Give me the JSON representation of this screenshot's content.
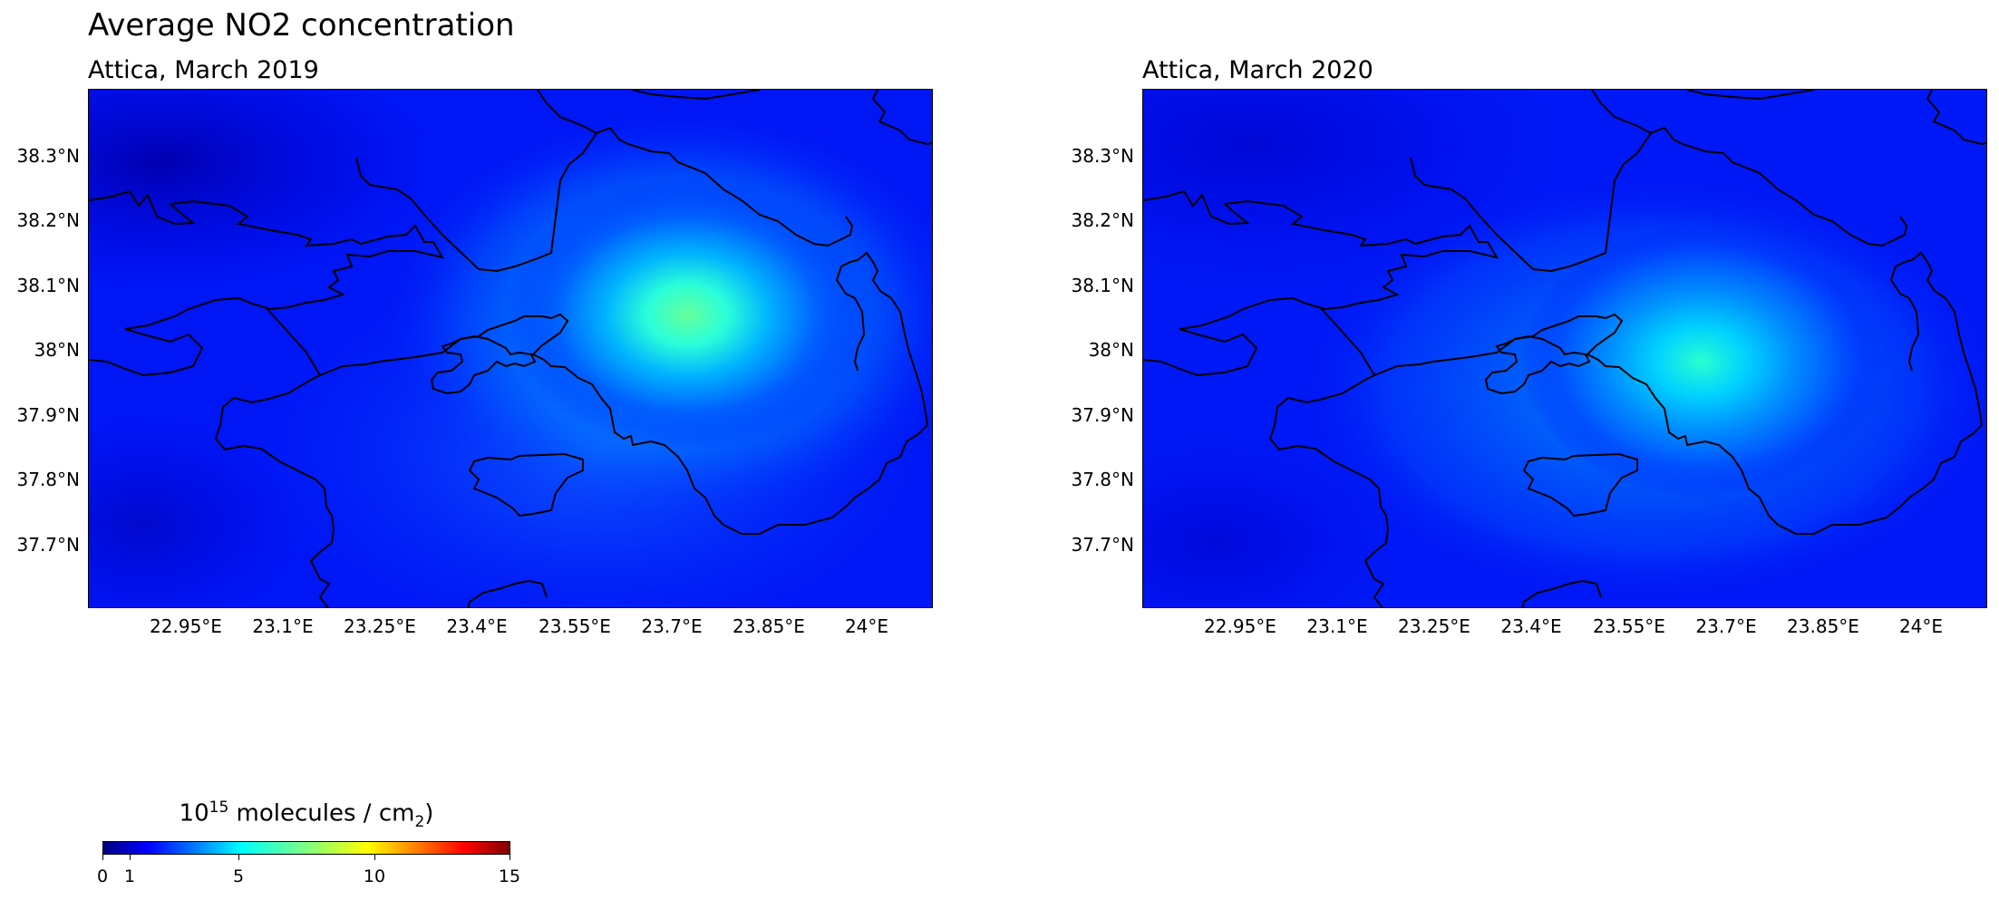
{
  "title": "Average NO2 concentration",
  "maps": [
    {
      "subtitle": "Attica, March 2019",
      "hotspot": {
        "lon": 23.74,
        "lat": 38.05,
        "peak_value": 7.2,
        "background_value": 1.4
      },
      "lat_ticks": [
        "38.3°N",
        "38.2°N",
        "38.1°N",
        "38°N",
        "37.9°N",
        "37.8°N",
        "37.7°N"
      ],
      "lon_ticks": [
        "22.95°E",
        "23.1°E",
        "23.25°E",
        "23.4°E",
        "23.55°E",
        "23.7°E",
        "23.85°E",
        "24°E"
      ]
    },
    {
      "subtitle": "Attica, March 2020",
      "hotspot": {
        "lon": 23.65,
        "lat": 37.98,
        "peak_value": 4.8,
        "background_value": 1.3
      },
      "lat_ticks": [
        "38.3°N",
        "38.2°N",
        "38.1°N",
        "38°N",
        "37.9°N",
        "37.8°N",
        "37.7°N"
      ],
      "lon_ticks": [
        "22.95°E",
        "23.1°E",
        "23.25°E",
        "23.4°E",
        "23.55°E",
        "23.7°E",
        "23.85°E",
        "24°E"
      ]
    }
  ],
  "colorbar": {
    "label_base": "10",
    "label_exp": "15",
    "label_mid": " molecules / cm",
    "label_sub": "2",
    "label_end": ")",
    "colormap": "jet",
    "range": [
      0,
      15
    ],
    "ticks": [
      "0",
      "1",
      "5",
      "10",
      "15"
    ]
  }
}
